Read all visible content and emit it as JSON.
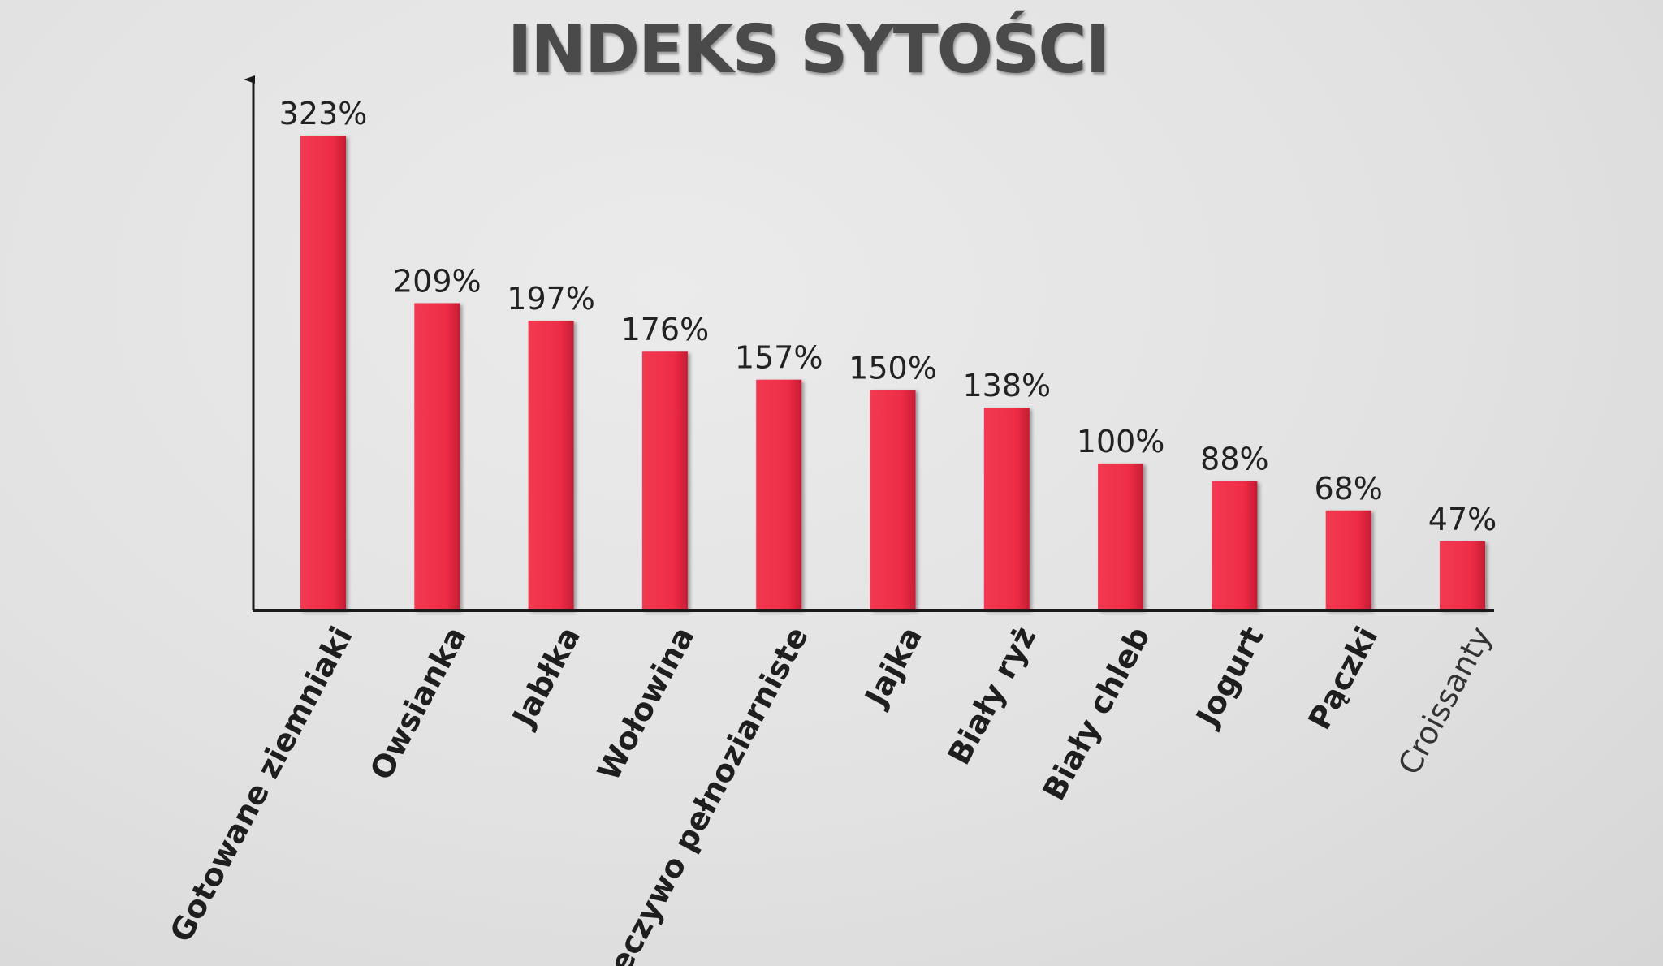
{
  "chart_data": {
    "type": "bar",
    "title": "INDEKS SYTOŚCI",
    "categories": [
      "Gotowane ziemniaki",
      "Owsianka",
      "Jabłka",
      "Wołowina",
      "Pieczywo pełnoziarniste",
      "Jajka",
      "Biały ryż",
      "Biały chleb",
      "Jogurt",
      "Pączki",
      "Croissanty"
    ],
    "values": [
      323,
      209,
      197,
      176,
      157,
      150,
      138,
      100,
      88,
      68,
      47
    ],
    "value_labels": [
      "323%",
      "209%",
      "197%",
      "176%",
      "157%",
      "150%",
      "138%",
      "100%",
      "88%",
      "68%",
      "47%"
    ],
    "xlabel": "",
    "ylabel": "",
    "ylim": [
      0,
      350
    ],
    "grid": false,
    "legend": "none",
    "colors": {
      "bar": "#ee2c46",
      "bar_dark": "#c51d34",
      "axis": "#1a1a1a",
      "title": "#4a4a4a"
    }
  }
}
